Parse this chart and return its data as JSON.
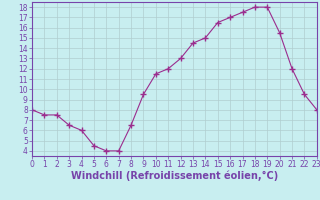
{
  "x": [
    0,
    1,
    2,
    3,
    4,
    5,
    6,
    7,
    8,
    9,
    10,
    11,
    12,
    13,
    14,
    15,
    16,
    17,
    18,
    19,
    20,
    21,
    22,
    23
  ],
  "y": [
    8.0,
    7.5,
    7.5,
    6.5,
    6.0,
    4.5,
    4.0,
    4.0,
    6.5,
    9.5,
    11.5,
    12.0,
    13.0,
    14.5,
    15.0,
    16.5,
    17.0,
    17.5,
    18.0,
    18.0,
    15.5,
    12.0,
    9.5,
    8.0
  ],
  "line_color": "#9b2d8e",
  "marker": "+",
  "marker_size": 4,
  "bg_color": "#c8eef0",
  "grid_color": "#b0cdd0",
  "xlabel": "Windchill (Refroidissement éolien,°C)",
  "xlim": [
    0,
    23
  ],
  "ylim": [
    3.5,
    18.5
  ],
  "yticks": [
    4,
    5,
    6,
    7,
    8,
    9,
    10,
    11,
    12,
    13,
    14,
    15,
    16,
    17,
    18
  ],
  "xticks": [
    0,
    1,
    2,
    3,
    4,
    5,
    6,
    7,
    8,
    9,
    10,
    11,
    12,
    13,
    14,
    15,
    16,
    17,
    18,
    19,
    20,
    21,
    22,
    23
  ],
  "tick_fontsize": 5.5,
  "xlabel_fontsize": 7.0,
  "spine_color": "#7744aa"
}
